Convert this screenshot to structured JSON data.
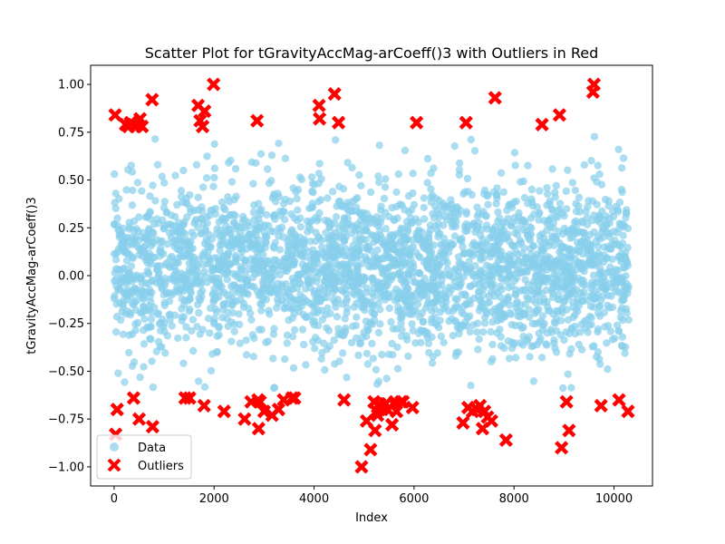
{
  "chart_data": {
    "type": "scatter",
    "title": "Scatter Plot for tGravityAccMag-arCoeff()3 with Outliers in Red",
    "xlabel": "Index",
    "ylabel": "tGravityAccMag-arCoeff()3",
    "xlim": [
      -470,
      10770
    ],
    "ylim": [
      -1.1,
      1.1
    ],
    "xticks": [
      0,
      2000,
      4000,
      6000,
      8000,
      10000
    ],
    "xtick_labels": [
      "0",
      "2000",
      "4000",
      "6000",
      "8000",
      "10000"
    ],
    "yticks": [
      -1.0,
      -0.75,
      -0.5,
      -0.25,
      0.0,
      0.25,
      0.5,
      0.75,
      1.0
    ],
    "ytick_labels": [
      "−1.00",
      "−0.75",
      "−0.50",
      "−0.25",
      "0.00",
      "0.25",
      "0.50",
      "0.75",
      "1.00"
    ],
    "grid": false,
    "legend_position": "lower-left",
    "colors": {
      "data": "#87ceeb",
      "outliers": "#ff0000"
    },
    "series": [
      {
        "name": "Data",
        "marker": "circle",
        "n_points": 10299,
        "x_range": [
          0,
          10298
        ],
        "y_min": -0.6,
        "y_max": 0.75,
        "dense_band": [
          -0.4,
          0.5
        ]
      },
      {
        "name": "Outliers",
        "marker": "x",
        "points": [
          [
            20,
            0.84
          ],
          [
            30,
            -0.83
          ],
          [
            60,
            -0.7
          ],
          [
            230,
            0.79
          ],
          [
            290,
            0.78
          ],
          [
            330,
            0.8
          ],
          [
            390,
            -0.64
          ],
          [
            430,
            0.78
          ],
          [
            470,
            0.79
          ],
          [
            500,
            -0.75
          ],
          [
            520,
            0.82
          ],
          [
            560,
            0.78
          ],
          [
            760,
            0.92
          ],
          [
            770,
            -0.79
          ],
          [
            1420,
            -0.64
          ],
          [
            1510,
            -0.64
          ],
          [
            1680,
            0.89
          ],
          [
            1720,
            0.81
          ],
          [
            1770,
            0.78
          ],
          [
            1800,
            -0.68
          ],
          [
            1810,
            0.86
          ],
          [
            1990,
            1.0
          ],
          [
            2200,
            -0.71
          ],
          [
            2610,
            -0.75
          ],
          [
            2740,
            -0.66
          ],
          [
            2860,
            0.81
          ],
          [
            2880,
            -0.65
          ],
          [
            2890,
            -0.8
          ],
          [
            2920,
            -0.66
          ],
          [
            3000,
            -0.71
          ],
          [
            3160,
            -0.73
          ],
          [
            3290,
            -0.7
          ],
          [
            3390,
            -0.65
          ],
          [
            3560,
            -0.64
          ],
          [
            3610,
            -0.64
          ],
          [
            4100,
            0.89
          ],
          [
            4110,
            0.82
          ],
          [
            4410,
            0.95
          ],
          [
            4490,
            0.8
          ],
          [
            4600,
            -0.65
          ],
          [
            4950,
            -1.0
          ],
          [
            5050,
            -0.76
          ],
          [
            5130,
            -0.91
          ],
          [
            5200,
            -0.66
          ],
          [
            5220,
            -0.81
          ],
          [
            5250,
            -0.71
          ],
          [
            5270,
            -0.73
          ],
          [
            5310,
            -0.67
          ],
          [
            5360,
            -0.7
          ],
          [
            5430,
            -0.67
          ],
          [
            5470,
            -0.7
          ],
          [
            5560,
            -0.78
          ],
          [
            5600,
            -0.67
          ],
          [
            5620,
            -0.66
          ],
          [
            5650,
            -0.71
          ],
          [
            5740,
            -0.66
          ],
          [
            5780,
            -0.66
          ],
          [
            5970,
            -0.69
          ],
          [
            6050,
            0.8
          ],
          [
            6980,
            -0.77
          ],
          [
            7040,
            0.8
          ],
          [
            7080,
            -0.69
          ],
          [
            7170,
            -0.71
          ],
          [
            7260,
            -0.7
          ],
          [
            7320,
            -0.68
          ],
          [
            7370,
            -0.8
          ],
          [
            7410,
            -0.71
          ],
          [
            7470,
            -0.74
          ],
          [
            7550,
            -0.76
          ],
          [
            7620,
            0.93
          ],
          [
            7840,
            -0.86
          ],
          [
            8560,
            0.79
          ],
          [
            8910,
            0.84
          ],
          [
            8950,
            -0.9
          ],
          [
            9050,
            -0.66
          ],
          [
            9100,
            -0.81
          ],
          [
            9580,
            0.96
          ],
          [
            9600,
            1.0
          ],
          [
            9740,
            -0.68
          ],
          [
            10100,
            -0.65
          ],
          [
            10280,
            -0.71
          ]
        ]
      }
    ]
  }
}
